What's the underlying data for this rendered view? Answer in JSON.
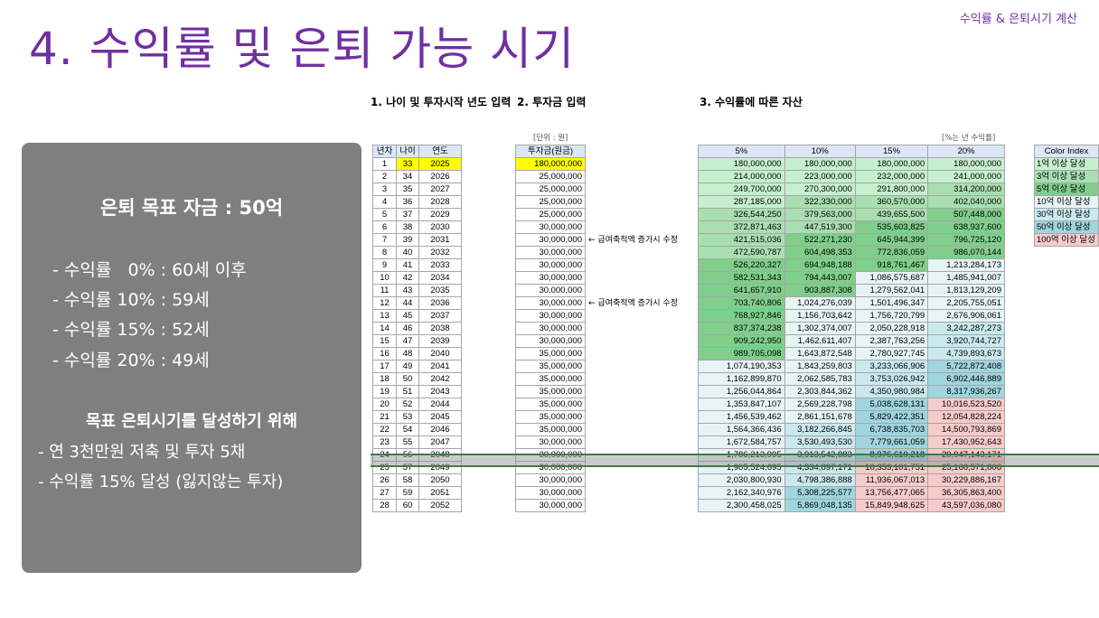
{
  "header": {
    "top_right_label": "수익률 & 은퇴시기 계산",
    "title": "4. 수익률 및 은퇴 가능 시기"
  },
  "sections": {
    "s1": "1. 나이 및 투자시작 년도 입력",
    "s2": "2. 투자금 입력",
    "s3": "3. 수익률에 따른 자산"
  },
  "summary": {
    "goal": "은퇴 목표 자금 : 50억",
    "rates": [
      "- 수익률   0% : 60세 이후",
      "- 수익률 10% : 59세",
      "- 수익률 15% : 52세",
      "- 수익률 20% : 49세"
    ],
    "subhead": "목표 은퇴시기를 달성하기 위해",
    "notes": [
      "- 연 3천만원 저축 및 투자 5채",
      "- 수익률 15% 달성 (잃지않는 투자)"
    ]
  },
  "units": {
    "invest_unit": "[단위 : 원]",
    "rate_unit": "[%는 년 수익률]"
  },
  "table_left": {
    "headers": [
      "년차",
      "나이",
      "연도"
    ],
    "rows": [
      [
        "1",
        "33",
        "2025"
      ],
      [
        "2",
        "34",
        "2026"
      ],
      [
        "3",
        "35",
        "2027"
      ],
      [
        "4",
        "36",
        "2028"
      ],
      [
        "5",
        "37",
        "2029"
      ],
      [
        "6",
        "38",
        "2030"
      ],
      [
        "7",
        "39",
        "2031"
      ],
      [
        "8",
        "40",
        "2032"
      ],
      [
        "9",
        "41",
        "2033"
      ],
      [
        "10",
        "42",
        "2034"
      ],
      [
        "11",
        "43",
        "2035"
      ],
      [
        "12",
        "44",
        "2036"
      ],
      [
        "13",
        "45",
        "2037"
      ],
      [
        "14",
        "46",
        "2038"
      ],
      [
        "15",
        "47",
        "2039"
      ],
      [
        "16",
        "48",
        "2040"
      ],
      [
        "17",
        "49",
        "2041"
      ],
      [
        "18",
        "50",
        "2042"
      ],
      [
        "19",
        "51",
        "2043"
      ],
      [
        "20",
        "52",
        "2044"
      ],
      [
        "21",
        "53",
        "2045"
      ],
      [
        "22",
        "54",
        "2046"
      ],
      [
        "23",
        "55",
        "2047"
      ],
      [
        "24",
        "56",
        "2048"
      ],
      [
        "25",
        "57",
        "2049"
      ],
      [
        "26",
        "58",
        "2050"
      ],
      [
        "27",
        "59",
        "2051"
      ],
      [
        "28",
        "60",
        "2052"
      ]
    ]
  },
  "table_invest": {
    "header": "투자금(원금)",
    "rows": [
      "180,000,000",
      "25,000,000",
      "25,000,000",
      "25,000,000",
      "25,000,000",
      "30,000,000",
      "30,000,000",
      "30,000,000",
      "30,000,000",
      "30,000,000",
      "30,000,000",
      "30,000,000",
      "30,000,000",
      "30,000,000",
      "30,000,000",
      "35,000,000",
      "35,000,000",
      "35,000,000",
      "35,000,000",
      "35,000,000",
      "35,000,000",
      "35,000,000",
      "30,000,000",
      "30,000,000",
      "30,000,000",
      "30,000,000",
      "30,000,000",
      "30,000,000"
    ],
    "notes": [
      {
        "row": 6,
        "text": "← 급여축적액 증가시 수정"
      },
      {
        "row": 11,
        "text": "← 급여축적액 증가시 수정"
      }
    ]
  },
  "table_assets": {
    "headers": [
      "5%",
      "10%",
      "15%",
      "20%"
    ],
    "rows": [
      [
        "180,000,000",
        "180,000,000",
        "180,000,000",
        "180,000,000"
      ],
      [
        "214,000,000",
        "223,000,000",
        "232,000,000",
        "241,000,000"
      ],
      [
        "249,700,000",
        "270,300,000",
        "291,800,000",
        "314,200,000"
      ],
      [
        "287,185,000",
        "322,330,000",
        "360,570,000",
        "402,040,000"
      ],
      [
        "326,544,250",
        "379,563,000",
        "439,655,500",
        "507,448,000"
      ],
      [
        "372,871,463",
        "447,519,300",
        "535,603,825",
        "638,937,600"
      ],
      [
        "421,515,036",
        "522,271,230",
        "645,944,399",
        "796,725,120"
      ],
      [
        "472,590,787",
        "604,498,353",
        "772,836,059",
        "986,070,144"
      ],
      [
        "526,220,327",
        "694,948,188",
        "918,761,467",
        "1,213,284,173"
      ],
      [
        "582,531,343",
        "794,443,007",
        "1,086,575,687",
        "1,485,941,007"
      ],
      [
        "641,657,910",
        "903,887,308",
        "1,279,562,041",
        "1,813,129,209"
      ],
      [
        "703,740,806",
        "1,024,276,039",
        "1,501,496,347",
        "2,205,755,051"
      ],
      [
        "768,927,846",
        "1,156,703,642",
        "1,756,720,799",
        "2,676,906,061"
      ],
      [
        "837,374,238",
        "1,302,374,007",
        "2,050,228,918",
        "3,242,287,273"
      ],
      [
        "909,242,950",
        "1,462,611,407",
        "2,387,763,256",
        "3,920,744,727"
      ],
      [
        "989,705,098",
        "1,643,872,548",
        "2,780,927,745",
        "4,739,893,673"
      ],
      [
        "1,074,190,353",
        "1,843,259,803",
        "3,233,066,906",
        "5,722,872,408"
      ],
      [
        "1,162,899,870",
        "2,062,585,783",
        "3,753,026,942",
        "6,902,446,889"
      ],
      [
        "1,256,044,864",
        "2,303,844,362",
        "4,350,980,984",
        "8,317,936,267"
      ],
      [
        "1,353,847,107",
        "2,569,228,798",
        "5,038,628,131",
        "10,016,523,520"
      ],
      [
        "1,456,539,462",
        "2,861,151,678",
        "5,829,422,351",
        "12,054,828,224"
      ],
      [
        "1,564,366,436",
        "3,182,266,845",
        "6,738,835,703",
        "14,500,793,869"
      ],
      [
        "1,672,584,757",
        "3,530,493,530",
        "7,779,661,059",
        "17,430,952,643"
      ],
      [
        "1,786,213,995",
        "3,913,542,883",
        "8,976,610,218",
        "20,947,143,171"
      ],
      [
        "1,905,524,695",
        "4,334,897,171",
        "10,353,101,751",
        "25,166,571,806"
      ],
      [
        "2,030,800,930",
        "4,798,386,888",
        "11,936,067,013",
        "30,229,886,167"
      ],
      [
        "2,162,340,976",
        "5,308,225,577",
        "13,756,477,065",
        "36,305,863,400"
      ],
      [
        "2,300,458,025",
        "5,869,048,135",
        "15,849,948,625",
        "43,597,036,080"
      ]
    ]
  },
  "color_index": {
    "header": "Color Index",
    "items": [
      {
        "label": "1억 이상 달성",
        "color": "#c6efce"
      },
      {
        "label": "3억 이상 달성",
        "color": "#a9dfb0"
      },
      {
        "label": "5억 이상 달성",
        "color": "#7fcf8a"
      },
      {
        "label": "10억 이상 달성",
        "color": "#e6f4f6"
      },
      {
        "label": "30억 이상 달성",
        "color": "#c9e9ee"
      },
      {
        "label": "50억 이상 달성",
        "color": "#9fd5df"
      },
      {
        "label": "100억 이상 달성",
        "color": "#f8cbcb"
      }
    ]
  }
}
